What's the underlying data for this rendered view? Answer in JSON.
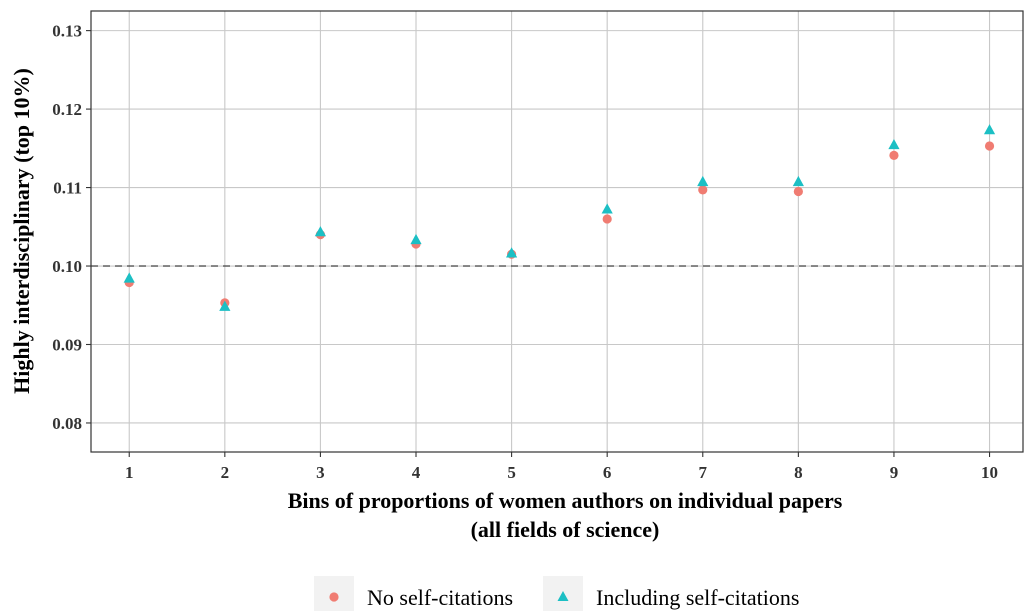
{
  "chart_data": {
    "type": "scatter",
    "title": "",
    "xlabel": "Bins of proportions of women authors on individual papers",
    "xlabel_line2": "(all fields of science)",
    "ylabel": "Highly interdisciplinary (top 10%)",
    "x": [
      1,
      2,
      3,
      4,
      5,
      6,
      7,
      8,
      9,
      10
    ],
    "xlim": [
      0.6,
      10.35
    ],
    "ylim": [
      0.0763,
      0.1325
    ],
    "x_ticks": [
      "1",
      "2",
      "3",
      "4",
      "5",
      "6",
      "7",
      "8",
      "9",
      "10"
    ],
    "y_ticks": [
      "0.08",
      "0.09",
      "0.10",
      "0.11",
      "0.12",
      "0.13"
    ],
    "y_tick_values": [
      0.08,
      0.09,
      0.1,
      0.11,
      0.12,
      0.13
    ],
    "reference_line": 0.1,
    "grid": true,
    "legend_position": "bottom",
    "series": [
      {
        "name": "No self-citations",
        "marker": "circle",
        "color": "#F07C72",
        "values": [
          0.0979,
          0.0953,
          0.104,
          0.1028,
          0.1015,
          0.106,
          0.1097,
          0.1095,
          0.1141,
          0.1153
        ]
      },
      {
        "name": "Including self-citations",
        "marker": "triangle",
        "color": "#1CBFC4",
        "values": [
          0.0984,
          0.0948,
          0.1043,
          0.1033,
          0.1016,
          0.1072,
          0.1107,
          0.1107,
          0.1154,
          0.1173
        ]
      }
    ]
  }
}
